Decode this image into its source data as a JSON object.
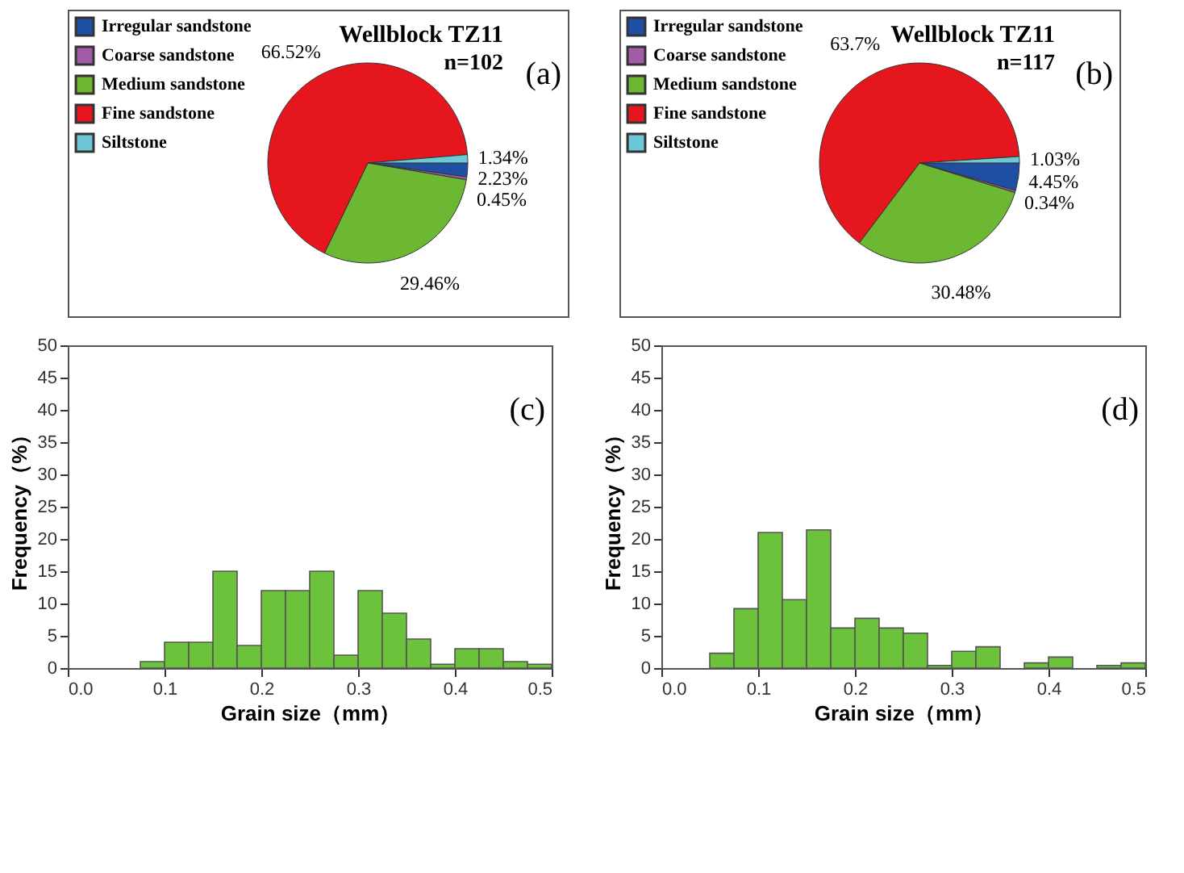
{
  "chart_data": [
    {
      "type": "pie",
      "title": "Wellblock TZ11",
      "subtitle": "n=102",
      "annotations": [
        "(a)"
      ],
      "legend": "top left",
      "categories": [
        "Irregular sandstone",
        "Coarse sandstone",
        "Medium sandstone",
        "Fine sandstone",
        "Siltstone"
      ],
      "values": [
        2.23,
        0.45,
        29.46,
        66.52,
        1.34
      ],
      "colors": [
        "#1f4fa3",
        "#a55ca8",
        "#6cb832",
        "#e5161d",
        "#6cc7d6"
      ],
      "value_labels": [
        "2.23%",
        "0.45%",
        "29.46%",
        "66.52%",
        "1.34%"
      ]
    },
    {
      "type": "pie",
      "title": "Wellblock TZ11",
      "subtitle": "n=117",
      "annotations": [
        "(b)"
      ],
      "legend": "top left",
      "categories": [
        "Irregular sandstone",
        "Coarse sandstone",
        "Medium sandstone",
        "Fine sandstone",
        "Siltstone"
      ],
      "values": [
        4.45,
        0.34,
        30.48,
        63.7,
        1.03
      ],
      "colors": [
        "#1f4fa3",
        "#a55ca8",
        "#6cb832",
        "#e5161d",
        "#6cc7d6"
      ],
      "value_labels": [
        "4.45%",
        "0.34%",
        "30.48%",
        "63.7%",
        "1.03%"
      ]
    },
    {
      "type": "histogram",
      "annotations": [
        "(c)"
      ],
      "xlabel": "Grain size（mm）",
      "ylabel": "Frequency（%）",
      "color": "#6cc23a",
      "bins": [
        0.075,
        0.1,
        0.125,
        0.15,
        0.175,
        0.2,
        0.225,
        0.25,
        0.275,
        0.3,
        0.325,
        0.35,
        0.375,
        0.4,
        0.425,
        0.45,
        0.475,
        0.5
      ],
      "values": [
        1,
        4,
        4,
        15,
        3.5,
        12,
        12,
        15,
        2,
        12,
        8.5,
        4.5,
        0.6,
        3,
        3,
        1,
        0.6
      ],
      "xlim": [
        0,
        0.5
      ],
      "xticks": [
        {
          "value": 0,
          "label": "0.0"
        },
        0.1,
        0.2,
        0.3,
        0.4,
        0.5
      ],
      "ylim": [
        0,
        50
      ],
      "yticks": [
        0,
        5,
        10,
        15,
        20,
        25,
        30,
        35,
        40,
        45,
        50
      ]
    },
    {
      "type": "histogram",
      "annotations": [
        "(d)"
      ],
      "xlabel": "Grain size（mm）",
      "ylabel": "Frequency（%）",
      "color": "#6cc23a",
      "bins": [
        0.05,
        0.075,
        0.1,
        0.125,
        0.15,
        0.175,
        0.2,
        0.225,
        0.25,
        0.275,
        0.3,
        0.325,
        0.35,
        0.375,
        0.4,
        0.425,
        0.45,
        0.475,
        0.5
      ],
      "values": [
        2.3,
        9.2,
        21,
        10.6,
        21.4,
        6.2,
        7.7,
        6.2,
        5.4,
        0.4,
        2.6,
        3.3,
        null,
        0.8,
        1.7,
        null,
        0.4,
        0.8
      ],
      "xlim": [
        0,
        0.5
      ],
      "xticks": [
        {
          "value": 0,
          "label": "0.0"
        },
        0.1,
        0.2,
        0.3,
        0.4,
        0.5
      ],
      "ylim": [
        0,
        50
      ],
      "yticks": [
        0,
        5,
        10,
        15,
        20,
        25,
        30,
        35,
        40,
        45,
        50
      ]
    }
  ]
}
